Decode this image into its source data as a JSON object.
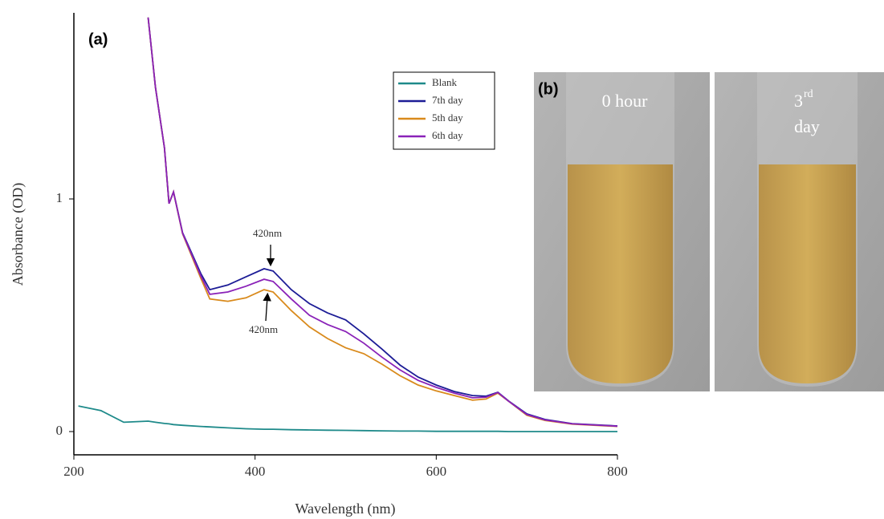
{
  "chart_data": {
    "type": "line",
    "panel_label": "(a)",
    "x_label": "Wavelength (nm)",
    "y_label": "Absorbance (OD)",
    "x": [
      205,
      230,
      255,
      282,
      290,
      300,
      305,
      310,
      320,
      340,
      350,
      370,
      390,
      410,
      420,
      440,
      460,
      480,
      500,
      520,
      540,
      560,
      580,
      600,
      620,
      640,
      655,
      668,
      680,
      700,
      720,
      750,
      800
    ],
    "series": [
      {
        "name": "Blank",
        "color": "#1e8a8a",
        "values": [
          0.11,
          0.09,
          0.04,
          0.045,
          0.04,
          0.035,
          0.033,
          0.03,
          0.027,
          0.022,
          0.02,
          0.016,
          0.012,
          0.01,
          0.01,
          0.008,
          0.007,
          0.006,
          0.005,
          0.004,
          0.003,
          0.002,
          0.002,
          0.001,
          0.001,
          0.001,
          0.001,
          0.001,
          0.0,
          0.0,
          0.0,
          0.0,
          0.0
        ]
      },
      {
        "name": "7th day",
        "color": "#1c1c96",
        "values": [
          null,
          null,
          null,
          1.78,
          1.48,
          1.22,
          0.98,
          1.03,
          0.855,
          0.68,
          0.61,
          0.63,
          0.665,
          0.7,
          0.69,
          0.61,
          0.55,
          0.51,
          0.48,
          0.42,
          0.355,
          0.286,
          0.234,
          0.2,
          0.172,
          0.155,
          0.152,
          0.169,
          0.131,
          0.076,
          0.052,
          0.034,
          0.024
        ]
      },
      {
        "name": "5th day",
        "color": "#d98a1c",
        "values": [
          null,
          null,
          null,
          1.78,
          1.48,
          1.22,
          0.98,
          1.03,
          0.85,
          0.66,
          0.57,
          0.56,
          0.575,
          0.61,
          0.6,
          0.52,
          0.45,
          0.4,
          0.36,
          0.335,
          0.29,
          0.24,
          0.2,
          0.175,
          0.155,
          0.135,
          0.14,
          0.165,
          0.13,
          0.07,
          0.048,
          0.032,
          0.022
        ]
      },
      {
        "name": "6th day",
        "color": "#8a22b8",
        "values": [
          null,
          null,
          null,
          1.78,
          1.48,
          1.22,
          0.98,
          1.03,
          0.852,
          0.67,
          0.59,
          0.6,
          0.625,
          0.655,
          0.645,
          0.57,
          0.5,
          0.46,
          0.43,
          0.38,
          0.32,
          0.265,
          0.22,
          0.19,
          0.165,
          0.145,
          0.148,
          0.168,
          0.13,
          0.073,
          0.05,
          0.033,
          0.023
        ]
      }
    ],
    "xlim": [
      200,
      800
    ],
    "xticks": [
      200,
      400,
      600,
      800
    ],
    "ylim": [
      -0.1,
      1.8
    ],
    "yticks": [
      0,
      1
    ],
    "legend": "upper-right",
    "annotations": [
      "420nm",
      "420nm"
    ]
  },
  "photos": {
    "panel_label": "(b)",
    "items": [
      {
        "label": "0 hour"
      },
      {
        "label": "3",
        "superscript": "rd",
        "label2": "day"
      }
    ]
  }
}
